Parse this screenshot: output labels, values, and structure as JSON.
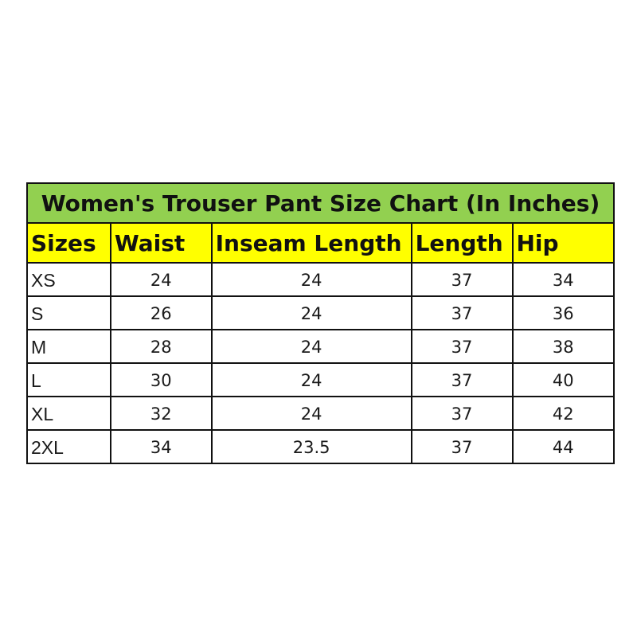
{
  "title": "Women's Trouser Pant Size Chart (In Inches)",
  "colors": {
    "title_bg": "#92d050",
    "header_bg": "#ffff00"
  },
  "headers": [
    "Sizes",
    "Waist",
    "Inseam Length",
    "Length",
    "Hip"
  ],
  "rows": [
    [
      "XS",
      "24",
      "24",
      "37",
      "34"
    ],
    [
      "S",
      "26",
      "24",
      "37",
      "36"
    ],
    [
      "M",
      "28",
      "24",
      "37",
      "38"
    ],
    [
      "L",
      "30",
      "24",
      "37",
      "40"
    ],
    [
      "XL",
      "32",
      "24",
      "37",
      "42"
    ],
    [
      "2XL",
      "34",
      "23.5",
      "37",
      "44"
    ]
  ]
}
